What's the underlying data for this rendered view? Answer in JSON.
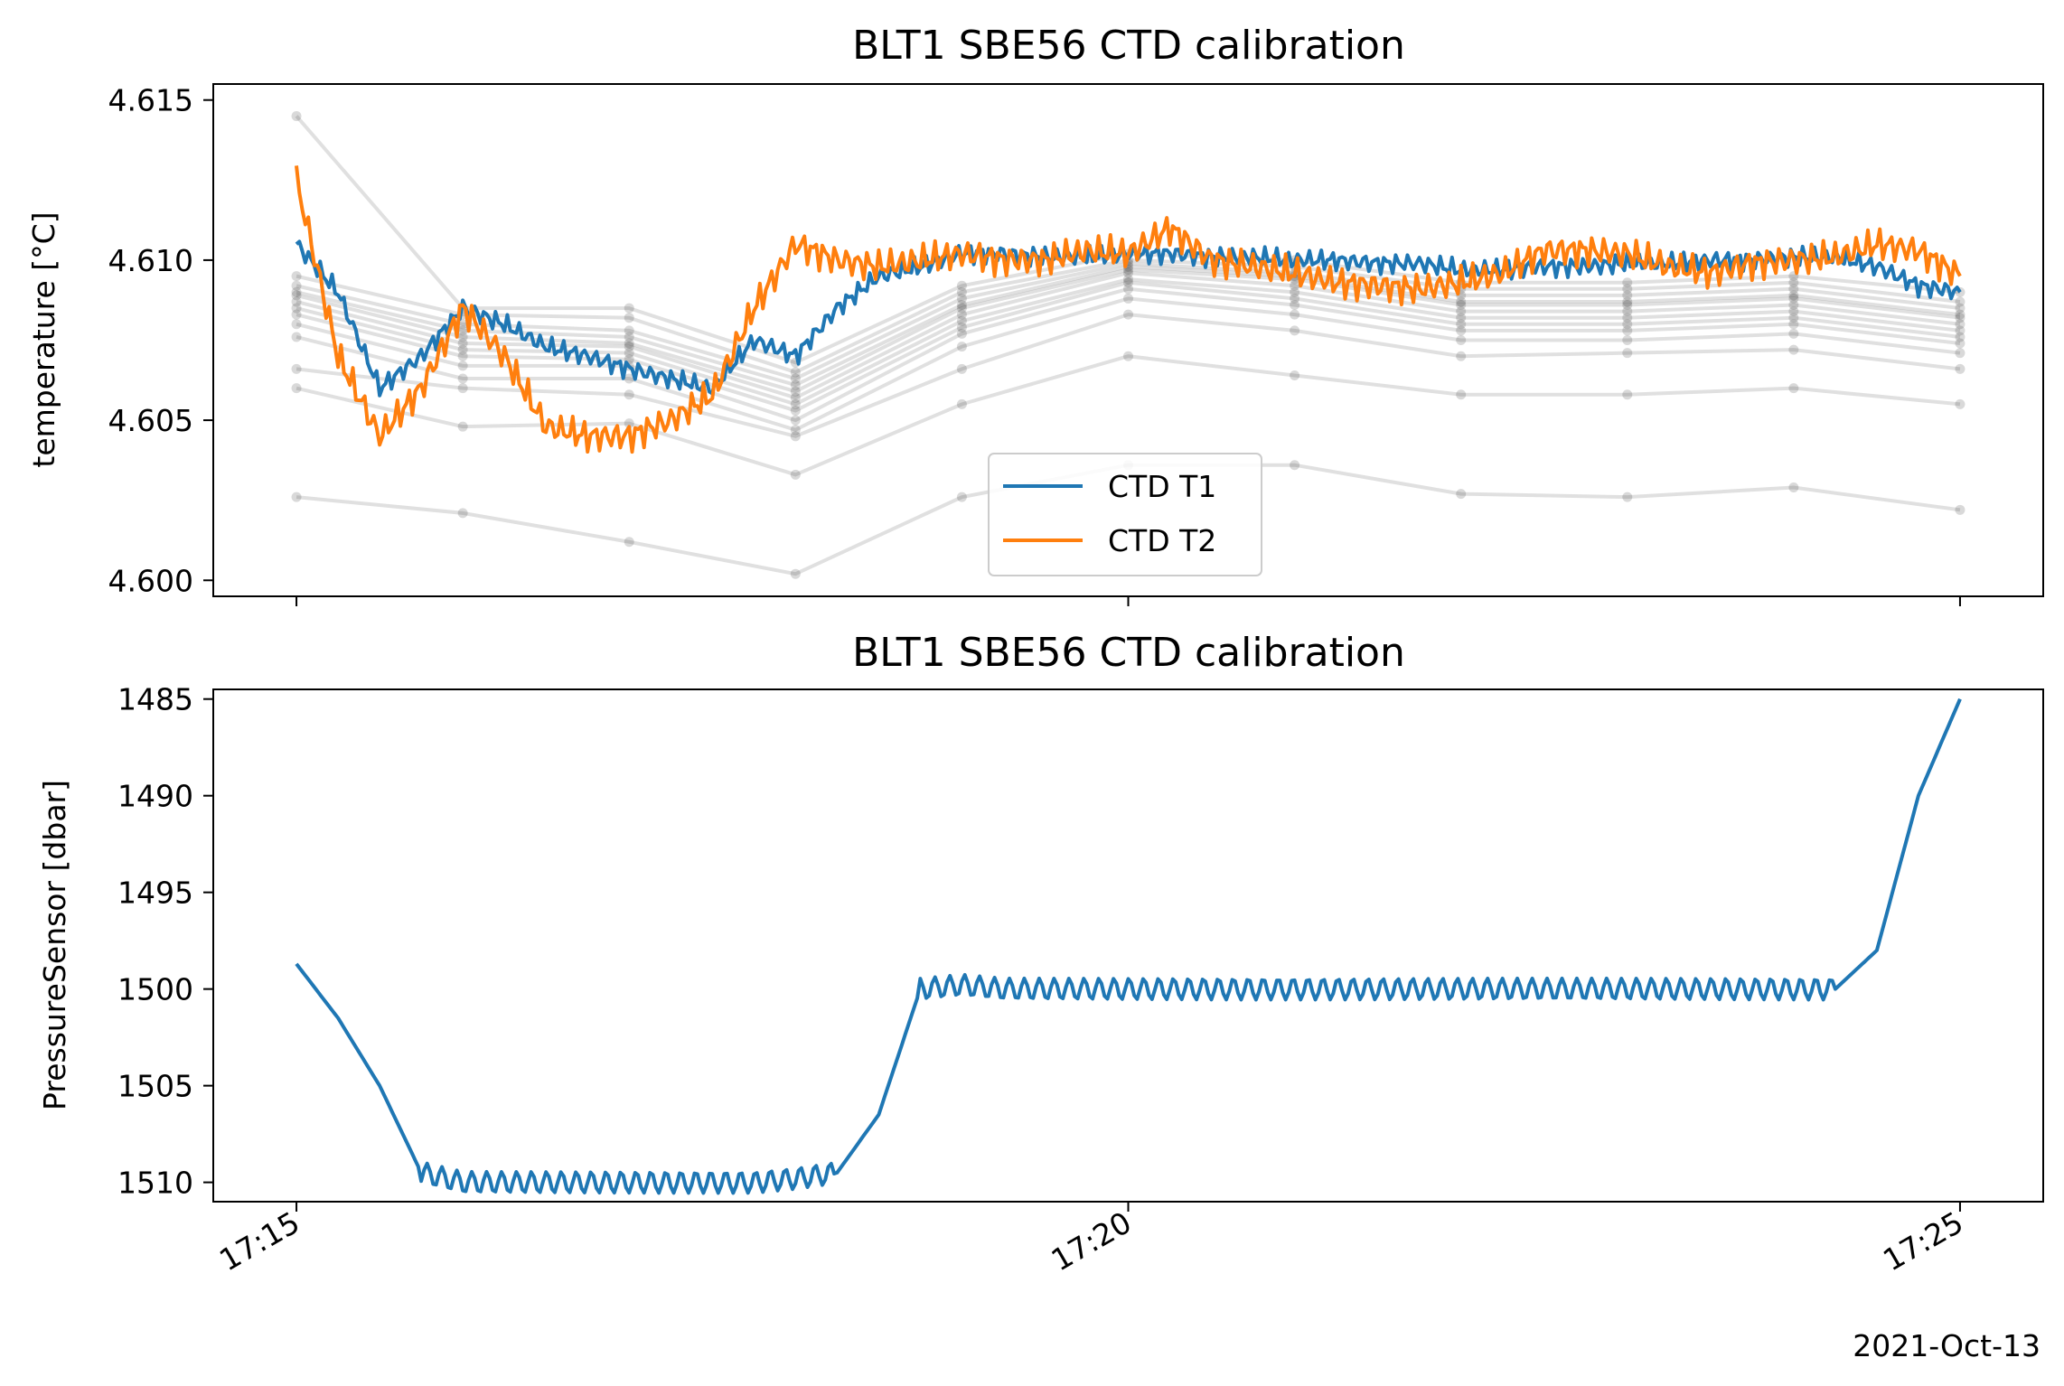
{
  "chart_data": [
    {
      "type": "line",
      "title": "BLT1 SBE56 CTD calibration",
      "xlabel": "",
      "ylabel": "temperature [°C]",
      "xlim": [
        "17:14:30",
        "17:25:30"
      ],
      "ylim": [
        4.5995,
        4.6155
      ],
      "yticks": [
        "4.600",
        "4.605",
        "4.610",
        "4.615"
      ],
      "xticks": [
        "17:15",
        "17:20",
        "17:25"
      ],
      "x_tick_labels_shown": false,
      "legend": {
        "placement": "lower-center",
        "entries": [
          "CTD T1",
          "CTD T2"
        ]
      },
      "grid": false,
      "series": [
        {
          "name": "CTD T1",
          "color": "#1f77b4",
          "x": [
            "17:15:00",
            "17:15:15",
            "17:15:30",
            "17:15:45",
            "17:16:00",
            "17:16:15",
            "17:16:30",
            "17:16:45",
            "17:17:00",
            "17:17:15",
            "17:17:30",
            "17:17:45",
            "17:18:00",
            "17:18:15",
            "17:18:30",
            "17:18:45",
            "17:19:00",
            "17:19:15",
            "17:19:30",
            "17:19:45",
            "17:20:00",
            "17:20:15",
            "17:20:30",
            "17:20:45",
            "17:21:00",
            "17:21:15",
            "17:21:30",
            "17:21:45",
            "17:22:00",
            "17:22:15",
            "17:22:30",
            "17:22:45",
            "17:23:00",
            "17:23:15",
            "17:23:30",
            "17:23:45",
            "17:24:00",
            "17:24:15",
            "17:24:30",
            "17:24:45",
            "17:25:00"
          ],
          "values": [
            4.6105,
            4.609,
            4.606,
            4.607,
            4.6085,
            4.608,
            4.6073,
            4.607,
            4.6066,
            4.6063,
            4.606,
            4.6075,
            4.607,
            4.6085,
            4.6095,
            4.6098,
            4.6102,
            4.6102,
            4.6101,
            4.6101,
            4.6102,
            4.6102,
            4.6101,
            4.6101,
            4.61,
            4.61,
            4.6099,
            4.6099,
            4.6097,
            4.6097,
            4.6098,
            4.6098,
            4.6099,
            4.6099,
            4.61,
            4.61,
            4.6101,
            4.6101,
            4.6098,
            4.6092,
            4.609
          ]
        },
        {
          "name": "CTD T2",
          "color": "#ff7f0e",
          "x": [
            "17:15:00",
            "17:15:15",
            "17:15:30",
            "17:15:45",
            "17:16:00",
            "17:16:15",
            "17:16:30",
            "17:16:45",
            "17:17:00",
            "17:17:15",
            "17:17:30",
            "17:17:45",
            "17:18:00",
            "17:18:15",
            "17:18:30",
            "17:18:45",
            "17:19:00",
            "17:19:15",
            "17:19:30",
            "17:19:45",
            "17:20:00",
            "17:20:15",
            "17:20:30",
            "17:20:45",
            "17:21:00",
            "17:21:15",
            "17:21:30",
            "17:21:45",
            "17:22:00",
            "17:22:15",
            "17:22:30",
            "17:22:45",
            "17:23:00",
            "17:23:15",
            "17:23:30",
            "17:23:45",
            "17:24:00",
            "17:24:15",
            "17:24:30",
            "17:24:45",
            "17:25:00"
          ],
          "values": [
            4.6125,
            4.607,
            4.6045,
            4.606,
            4.6085,
            4.607,
            4.6048,
            4.6045,
            4.6045,
            4.605,
            4.6058,
            4.6085,
            4.6105,
            4.61,
            4.6098,
            4.61,
            4.6102,
            4.61,
            4.61,
            4.6103,
            4.6102,
            4.611,
            4.61,
            4.6098,
            4.6096,
            4.6093,
            4.6092,
            4.6091,
            4.6093,
            4.6096,
            4.6103,
            4.6103,
            4.6102,
            4.6098,
            4.6096,
            4.6099,
            4.61,
            4.6101,
            4.6105,
            4.6103,
            4.6095
          ]
        }
      ],
      "reference_sensors": {
        "color": "#000000",
        "x": [
          "17:15:00",
          "17:16:00",
          "17:17:00",
          "17:18:00",
          "17:19:00",
          "17:20:00",
          "17:21:00",
          "17:22:00",
          "17:23:00",
          "17:24:00",
          "17:25:00"
        ],
        "curves": [
          [
            4.6145,
            4.6085,
            4.6085,
            4.6068,
            4.6092,
            4.6102,
            4.61,
            4.6093,
            4.6093,
            4.6095,
            4.609
          ],
          [
            4.6095,
            4.6083,
            4.6082,
            4.6065,
            4.609,
            4.61,
            4.6098,
            4.6091,
            4.6091,
            4.6093,
            4.6087
          ],
          [
            4.6092,
            4.608,
            4.6078,
            4.6063,
            4.6088,
            4.6099,
            4.6096,
            4.6089,
            4.6089,
            4.6091,
            4.6085
          ],
          [
            4.609,
            4.6078,
            4.6076,
            4.6061,
            4.6086,
            4.6098,
            4.6095,
            4.6087,
            4.6087,
            4.6089,
            4.6083
          ],
          [
            4.6089,
            4.6076,
            4.6074,
            4.6059,
            4.6085,
            4.6097,
            4.6094,
            4.6086,
            4.6086,
            4.6088,
            4.6082
          ],
          [
            4.6087,
            4.6074,
            4.6073,
            4.6057,
            4.6083,
            4.6096,
            4.6092,
            4.6084,
            4.6084,
            4.6086,
            4.608
          ],
          [
            4.6085,
            4.6072,
            4.6071,
            4.6055,
            4.6081,
            4.6094,
            4.609,
            4.6082,
            4.6082,
            4.6084,
            4.6078
          ],
          [
            4.6083,
            4.607,
            4.6069,
            4.6053,
            4.6079,
            4.6093,
            4.6088,
            4.608,
            4.608,
            4.6082,
            4.6076
          ],
          [
            4.608,
            4.6067,
            4.6067,
            4.605,
            4.6077,
            4.6091,
            4.6086,
            4.6078,
            4.6078,
            4.608,
            4.6074
          ],
          [
            4.6076,
            4.6063,
            4.6063,
            4.6047,
            4.6073,
            4.6088,
            4.6083,
            4.6075,
            4.6075,
            4.6077,
            4.6071
          ],
          [
            4.6066,
            4.606,
            4.6058,
            4.6045,
            4.6066,
            4.6083,
            4.6078,
            4.607,
            4.6071,
            4.6072,
            4.6066
          ],
          [
            4.606,
            4.6048,
            4.6049,
            4.6033,
            4.6055,
            4.607,
            4.6064,
            4.6058,
            4.6058,
            4.606,
            4.6055
          ],
          [
            4.6026,
            4.6021,
            4.6012,
            4.6002,
            4.6026,
            4.6036,
            4.6036,
            4.6027,
            4.6026,
            4.6029,
            4.6022
          ]
        ]
      }
    },
    {
      "type": "line",
      "title": "BLT1 SBE56 CTD calibration",
      "xlabel": "",
      "ylabel": "PressureSensor [dbar]",
      "xlim": [
        "17:14:30",
        "17:25:30"
      ],
      "ylim": [
        1511,
        1484.5
      ],
      "y_inverted": true,
      "yticks": [
        "1485",
        "1490",
        "1495",
        "1500",
        "1505",
        "1510"
      ],
      "xticks": [
        "17:15",
        "17:20",
        "17:25"
      ],
      "date_label": "2021-Oct-13",
      "grid": false,
      "series": [
        {
          "name": "",
          "color": "#1f77b4",
          "x": [
            "17:15:00",
            "17:15:15",
            "17:15:30",
            "17:15:45",
            "17:16:00",
            "17:16:15",
            "17:16:30",
            "17:16:45",
            "17:17:00",
            "17:17:15",
            "17:17:30",
            "17:17:45",
            "17:18:00",
            "17:18:15",
            "17:18:30",
            "17:18:45",
            "17:19:00",
            "17:19:15",
            "17:19:30",
            "17:19:45",
            "17:20:00",
            "17:20:15",
            "17:20:30",
            "17:20:45",
            "17:21:00",
            "17:21:15",
            "17:21:30",
            "17:21:45",
            "17:22:00",
            "17:22:15",
            "17:22:30",
            "17:22:45",
            "17:23:00",
            "17:23:15",
            "17:23:30",
            "17:23:45",
            "17:24:00",
            "17:24:15",
            "17:24:30",
            "17:24:45",
            "17:25:00"
          ],
          "values": [
            1498.7,
            1501.5,
            1505.0,
            1509.5,
            1510.0,
            1510.0,
            1510.0,
            1510.0,
            1510.0,
            1510.0,
            1510.0,
            1510.0,
            1509.8,
            1509.5,
            1506.5,
            1500.0,
            1499.8,
            1500.0,
            1500.0,
            1500.0,
            1500.0,
            1500.0,
            1500.0,
            1500.0,
            1500.0,
            1500.0,
            1500.0,
            1500.0,
            1500.0,
            1500.0,
            1500.0,
            1500.0,
            1500.0,
            1500.0,
            1500.0,
            1500.0,
            1500.0,
            1500.0,
            1498.0,
            1490.0,
            1485.0
          ]
        }
      ]
    }
  ]
}
